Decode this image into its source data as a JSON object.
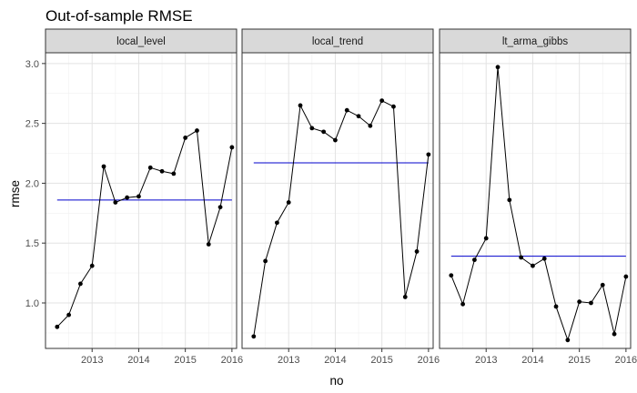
{
  "chart_data": {
    "type": "line",
    "title": "Out-of-sample RMSE",
    "xlabel": "no",
    "ylabel": "rmse",
    "xlim": [
      2012.0,
      2016.1
    ],
    "ylim": [
      0.62,
      3.09
    ],
    "x_ticks": [
      2013,
      2014,
      2015,
      2016
    ],
    "x_tick_labels": [
      "2013",
      "2014",
      "2015",
      "2016"
    ],
    "y_ticks": [
      1.0,
      1.5,
      2.0,
      2.5,
      3.0
    ],
    "y_tick_labels": [
      "1.0",
      "1.5",
      "2.0",
      "2.5",
      "3.0"
    ],
    "x": [
      2012.25,
      2012.5,
      2012.75,
      2013.0,
      2013.25,
      2013.5,
      2013.75,
      2014.0,
      2014.25,
      2014.5,
      2014.75,
      2015.0,
      2015.25,
      2015.5,
      2015.75,
      2016.0
    ],
    "line_color": "#000000",
    "hline_color": "#0000cc",
    "panels": [
      {
        "name": "local_level",
        "values": [
          0.8,
          0.9,
          1.16,
          1.31,
          2.14,
          1.84,
          1.88,
          1.89,
          2.13,
          2.1,
          2.08,
          2.38,
          2.44,
          1.49,
          1.8,
          2.3
        ],
        "hline": 1.86
      },
      {
        "name": "local_trend",
        "values": [
          0.72,
          1.35,
          1.67,
          1.84,
          2.65,
          2.46,
          2.43,
          2.36,
          2.61,
          2.56,
          2.48,
          2.69,
          2.64,
          1.05,
          1.43,
          2.24
        ],
        "hline": 2.17
      },
      {
        "name": "lt_arma_gibbs",
        "values": [
          1.23,
          0.99,
          1.36,
          1.54,
          2.97,
          1.86,
          1.38,
          1.31,
          1.37,
          0.97,
          0.69,
          1.01,
          1.0,
          1.15,
          0.74,
          1.22
        ],
        "hline": 1.39
      }
    ]
  }
}
